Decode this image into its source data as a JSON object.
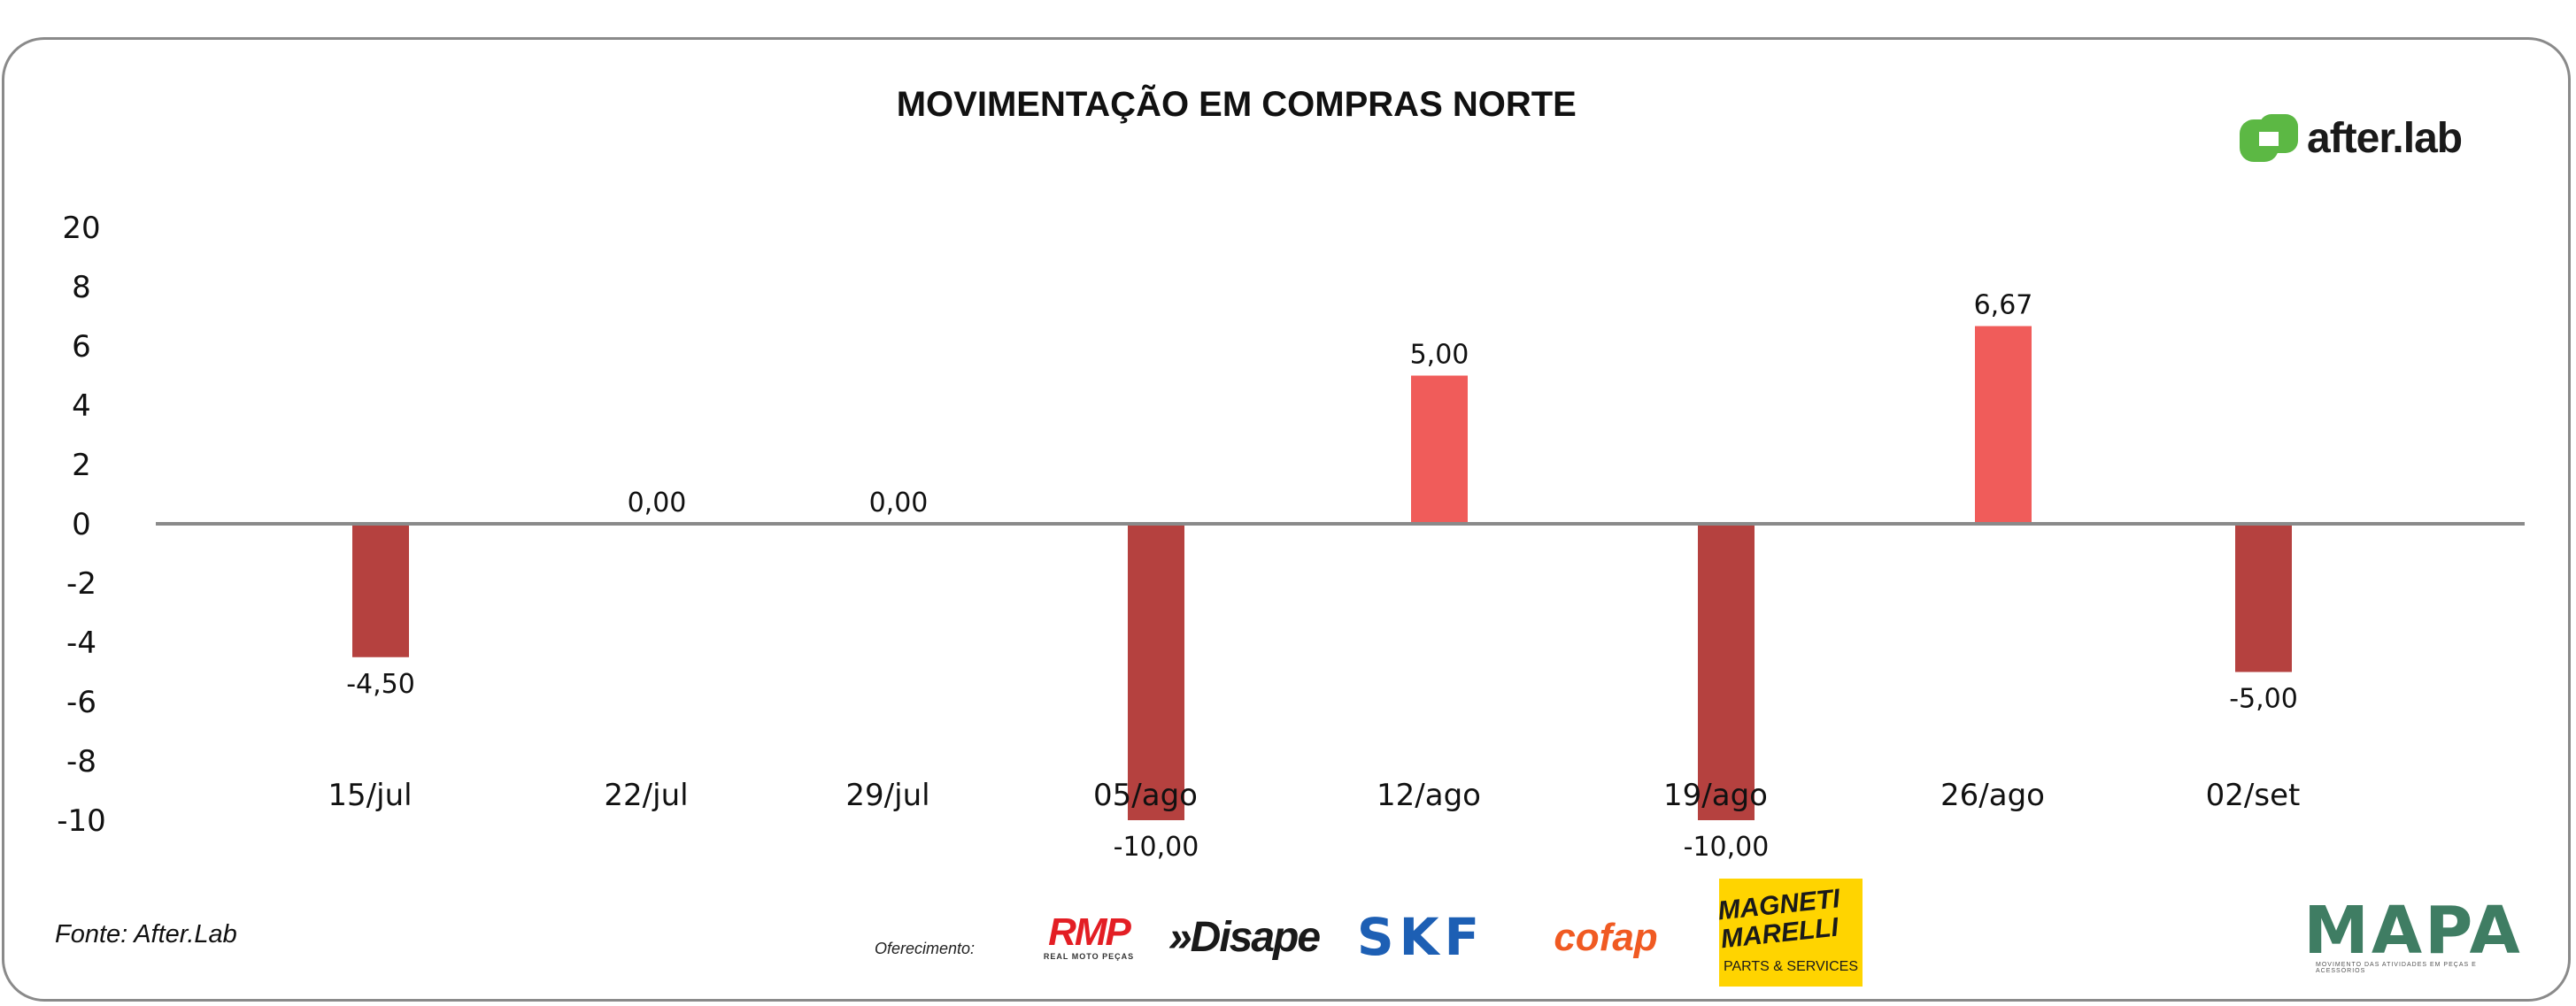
{
  "title": "MOVIMENTAÇÃO EM COMPRAS NORTE",
  "source": "Fonte: After.Lab",
  "sponsor_label": "Oferecimento:",
  "logos": {
    "afterlab": "after.lab",
    "rmp": "RMP",
    "rmp_sub": "REAL MOTO PEÇAS",
    "disape": "»Disape",
    "skf": "SKF",
    "cofap": "cofap",
    "magneti": "MAGNETI MARELLI",
    "magneti_sub": "PARTS & SERVICES",
    "mapa": "MAPA",
    "mapa_sub": "MOVIMENTO DAS ATIVIDADES EM PEÇAS E ACESSÓRIOS"
  },
  "colors": {
    "negative": "#b5413f",
    "positive": "#f05c5a",
    "axis": "#8a8a8a",
    "afterlab_green": "#5cb844"
  },
  "chart_data": {
    "type": "bar",
    "title": "MOVIMENTAÇÃO EM COMPRAS NORTE",
    "categories": [
      "15/jul",
      "22/jul",
      "29/jul",
      "05/ago",
      "12/ago",
      "19/ago",
      "26/ago",
      "02/set"
    ],
    "values": [
      -4.5,
      0,
      0,
      -10,
      5,
      -10,
      6.67,
      -5
    ],
    "data_labels": [
      "-4,50",
      "0,00",
      "0,00",
      "-10,00",
      "5,00",
      "-10,00",
      "6,67",
      "-5,00"
    ],
    "y_ticks": [
      20,
      8,
      6,
      4,
      2,
      0,
      -2,
      -4,
      -6,
      -8,
      -10
    ],
    "y_tick_labels": [
      "20",
      "8",
      "6",
      "4",
      "2",
      "0",
      "-2",
      "-4",
      "-6",
      "-8",
      "-10"
    ],
    "xlabel": "",
    "ylabel": "",
    "grid": false,
    "legend": "none"
  }
}
